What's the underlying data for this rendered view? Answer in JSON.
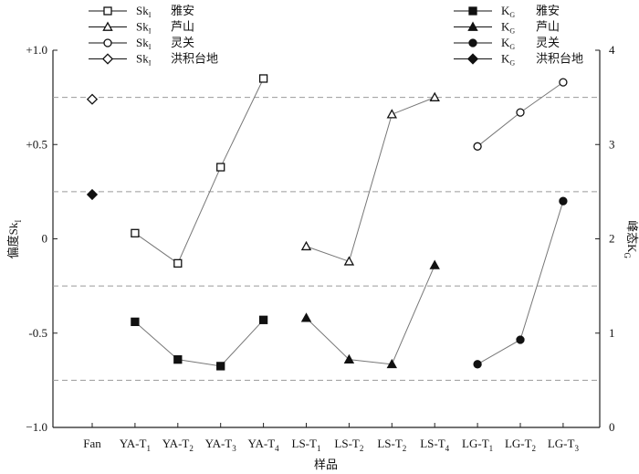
{
  "chart_data": {
    "type": "scatter",
    "categories": [
      "Fan",
      "YA-T1",
      "YA-T2",
      "YA-T3",
      "YA-T4",
      "LS-T1",
      "LS-T2",
      "LS-T2",
      "LS-T4",
      "LG-T1",
      "LG-T2",
      "LG-T3"
    ],
    "category_labels": [
      {
        "main": "Fan",
        "sub": ""
      },
      {
        "main": "YA-T",
        "sub": "1"
      },
      {
        "main": "YA-T",
        "sub": "2"
      },
      {
        "main": "YA-T",
        "sub": "3"
      },
      {
        "main": "YA-T",
        "sub": "4"
      },
      {
        "main": "LS-T",
        "sub": "1"
      },
      {
        "main": "LS-T",
        "sub": "2"
      },
      {
        "main": "LS-T",
        "sub": "2"
      },
      {
        "main": "LS-T",
        "sub": "4"
      },
      {
        "main": "LG-T",
        "sub": "1"
      },
      {
        "main": "LG-T",
        "sub": "2"
      },
      {
        "main": "LG-T",
        "sub": "3"
      }
    ],
    "xlabel": "样品",
    "ylabel_left": {
      "main": "偏度Sk",
      "sub": "I"
    },
    "ylabel_right": {
      "main": "峰态K",
      "sub": "G"
    },
    "ylim_left": [
      -1.0,
      1.0
    ],
    "ylim_right": [
      0,
      4
    ],
    "yticks_left": [
      -1.0,
      -0.5,
      0,
      0.5,
      1.0
    ],
    "yticks_left_labels": [
      "−1.0",
      "-0.5",
      "0",
      "+0.5",
      "+1.0"
    ],
    "yticks_right": [
      0,
      1,
      2,
      3,
      4
    ],
    "yticks_right_labels": [
      "0",
      "1",
      "2",
      "3",
      "4"
    ],
    "reference_lines_left": [
      0.75,
      0.25,
      -0.25,
      -0.75
    ],
    "grid": false,
    "series": [
      {
        "name": "Sk_I 雅安",
        "axis": "left",
        "marker": "square",
        "filled": false,
        "connected": true,
        "x": [
          1,
          2,
          3,
          4
        ],
        "y": [
          0.03,
          -0.13,
          0.38,
          0.85
        ]
      },
      {
        "name": "Sk_I 芦山",
        "axis": "left",
        "marker": "triangle",
        "filled": false,
        "connected": true,
        "x": [
          5,
          6,
          7,
          8
        ],
        "y": [
          -0.04,
          -0.12,
          0.66,
          0.75
        ]
      },
      {
        "name": "Sk_I 灵关",
        "axis": "left",
        "marker": "circle",
        "filled": false,
        "connected": true,
        "x": [
          9,
          10,
          11
        ],
        "y": [
          0.49,
          0.67,
          0.83
        ]
      },
      {
        "name": "Sk_I 洪积台地",
        "axis": "left",
        "marker": "diamond",
        "filled": false,
        "connected": false,
        "x": [
          0
        ],
        "y": [
          0.74
        ]
      },
      {
        "name": "K_G 雅安",
        "axis": "right",
        "marker": "square",
        "filled": true,
        "connected": true,
        "x": [
          1,
          2,
          3,
          4
        ],
        "y": [
          1.12,
          0.72,
          0.65,
          1.14
        ]
      },
      {
        "name": "K_G 芦山",
        "axis": "right",
        "marker": "triangle",
        "filled": true,
        "connected": true,
        "x": [
          5,
          6,
          7,
          8
        ],
        "y": [
          1.16,
          0.72,
          0.67,
          1.72
        ]
      },
      {
        "name": "K_G 灵关",
        "axis": "right",
        "marker": "circle",
        "filled": true,
        "connected": true,
        "x": [
          9,
          10,
          11
        ],
        "y": [
          0.67,
          0.93,
          2.4
        ]
      },
      {
        "name": "K_G 洪积台地",
        "axis": "right",
        "marker": "diamond",
        "filled": true,
        "connected": false,
        "x": [
          0
        ],
        "y": [
          2.47
        ]
      }
    ],
    "legend_left": {
      "placement": "top-left",
      "entries": [
        {
          "symbol": "Sk",
          "sub": "I",
          "label": "雅安",
          "marker": "square",
          "filled": false
        },
        {
          "symbol": "Sk",
          "sub": "I",
          "label": "芦山",
          "marker": "triangle",
          "filled": false
        },
        {
          "symbol": "Sk",
          "sub": "I",
          "label": "灵关",
          "marker": "circle",
          "filled": false
        },
        {
          "symbol": "Sk",
          "sub": "I",
          "label": "洪积台地",
          "marker": "diamond",
          "filled": false
        }
      ]
    },
    "legend_right": {
      "placement": "top-right",
      "entries": [
        {
          "symbol": "K",
          "sub": "G",
          "label": "雅安",
          "marker": "square",
          "filled": true
        },
        {
          "symbol": "K",
          "sub": "G",
          "label": "芦山",
          "marker": "triangle",
          "filled": true
        },
        {
          "symbol": "K",
          "sub": "G",
          "label": "灵关",
          "marker": "circle",
          "filled": true
        },
        {
          "symbol": "K",
          "sub": "G",
          "label": "洪积台地",
          "marker": "diamond",
          "filled": true
        }
      ]
    },
    "colors": {
      "marker": "#111111",
      "line": "#777777",
      "reference_line": "#9a9a9a",
      "axis": "#222222"
    }
  }
}
